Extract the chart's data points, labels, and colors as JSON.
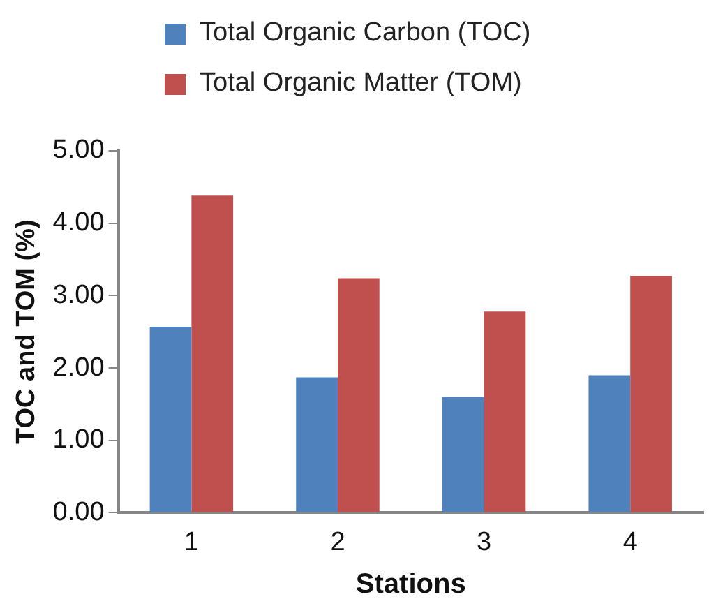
{
  "chart_data": {
    "type": "bar",
    "xlabel": "Stations",
    "ylabel": "TOC and TOM (%)",
    "categories": [
      "1",
      "2",
      "3",
      "4"
    ],
    "series": [
      {
        "name": "Total Organic Carbon (TOC)",
        "color": "#4f81bd",
        "values": [
          2.57,
          1.87,
          1.6,
          1.9
        ]
      },
      {
        "name": "Total Organic Matter (TOM)",
        "color": "#c0504d",
        "values": [
          4.38,
          3.24,
          2.78,
          3.27
        ]
      }
    ],
    "ylim": [
      0,
      5
    ],
    "yticks": [
      {
        "value": 0,
        "label": "0.00"
      },
      {
        "value": 1,
        "label": "1.00"
      },
      {
        "value": 2,
        "label": "2.00"
      },
      {
        "value": 3,
        "label": "3.00"
      },
      {
        "value": 4,
        "label": "4.00"
      },
      {
        "value": 5,
        "label": "5.00"
      }
    ],
    "grid": false,
    "legend": "top"
  }
}
